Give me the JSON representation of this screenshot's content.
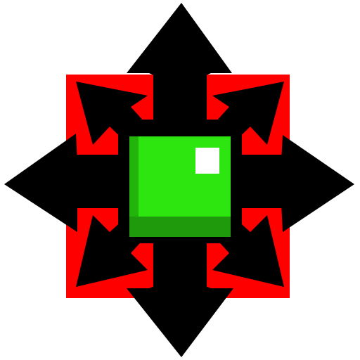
{
  "icon": {
    "name": "multi-directional-move-icon",
    "arrow_count": 8,
    "directions": [
      "up",
      "down",
      "left",
      "right",
      "up-left",
      "up-right",
      "down-left",
      "down-right"
    ]
  },
  "colors": {
    "background": "#ffffff",
    "frame": "#ff0000",
    "arrows": "#000000",
    "block_face": "#2ee60f",
    "block_left_shade": "#23b40c",
    "block_bottom_shade": "#1f9a0c",
    "block_highlight": "#ffffff"
  }
}
